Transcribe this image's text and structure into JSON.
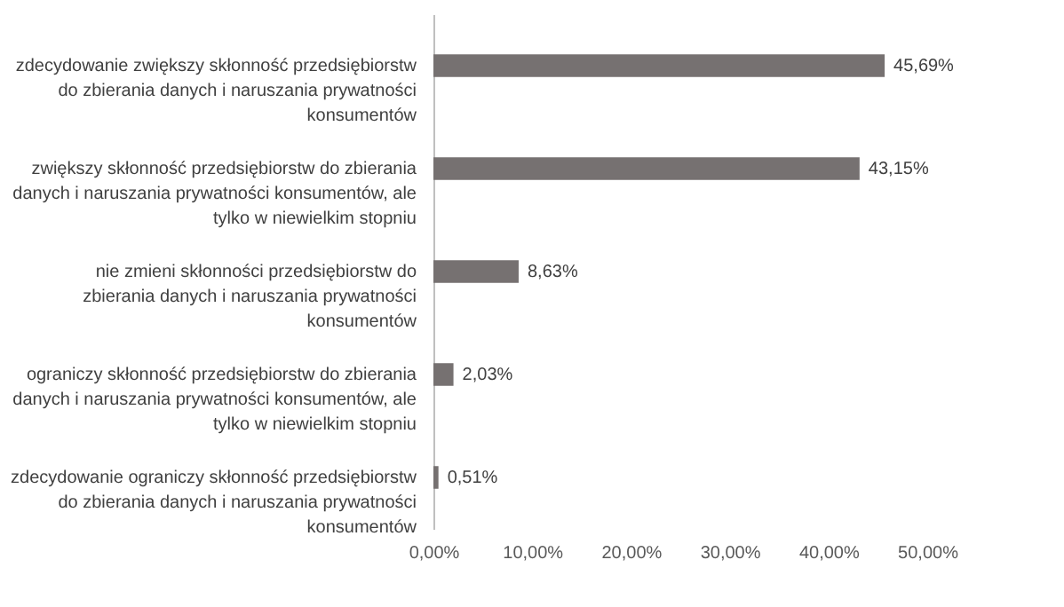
{
  "chart_data": {
    "type": "bar",
    "orientation": "horizontal",
    "categories": [
      "zdecydowanie zwiększy skłonność przedsiębiorstw do zbierania danych i naruszania prywatności konsumentów",
      "zwiększy skłonność przedsiębiorstw do zbierania danych i naruszania prywatności konsumentów, ale tylko w niewielkim stopniu",
      "nie zmieni skłonności przedsiębiorstw do zbierania danych i naruszania prywatności konsumentów",
      "ograniczy skłonność przedsiębiorstw do zbierania danych i naruszania prywatności konsumentów, ale tylko w niewielkim stopniu",
      "zdecydowanie ograniczy skłonność przedsiębiorstw do zbierania danych i naruszania prywatności konsumentów"
    ],
    "values": [
      45.69,
      43.15,
      8.63,
      2.03,
      0.51
    ],
    "value_labels": [
      "45,69%",
      "43,15%",
      "8,63%",
      "2,03%",
      "0,51%"
    ],
    "color": "#767171",
    "xlim": [
      0,
      50
    ],
    "xticks": [
      {
        "value": 0,
        "label": "0,00%"
      },
      {
        "value": 10,
        "label": "10,00%"
      },
      {
        "value": 20,
        "label": "20,00%"
      },
      {
        "value": 30,
        "label": "30,00%"
      },
      {
        "value": 40,
        "label": "40,00%"
      },
      {
        "value": 50,
        "label": "50,00%"
      }
    ],
    "grid": false
  }
}
